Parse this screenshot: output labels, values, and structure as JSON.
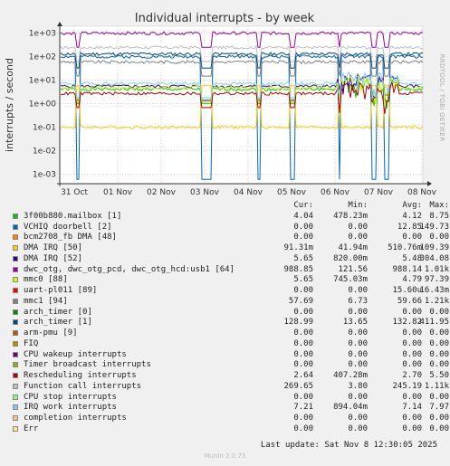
{
  "chart_data": {
    "type": "line",
    "title": "Individual interrupts - by week",
    "ylabel": "interrupts / second",
    "yscale": "log",
    "ylim": [
      0.0005,
      1000
    ],
    "y_ticks": [
      "1e+03",
      "1e+02",
      "1e+01",
      "1e+00",
      "1e-01",
      "1e-02",
      "1e-03"
    ],
    "x_ticks": [
      "31 Oct",
      "01 Nov",
      "02 Nov",
      "03 Nov",
      "04 Nov",
      "05 Nov",
      "06 Nov",
      "07 Nov",
      "08 Nov"
    ],
    "grid": true,
    "side_label": "RRDTOOL / TOBI OETIKER",
    "column_headers": [
      "Cur:",
      "Min:",
      "Avg:",
      "Max:"
    ],
    "series": [
      {
        "name": "3f00b880.mailbox [1]",
        "color": "#00cc00",
        "cur": "4.04",
        "min": "478.23m",
        "avg": "4.12",
        "max": "8.75",
        "level": 4.1
      },
      {
        "name": "VCHIQ doorbell [2]",
        "color": "#0066b3",
        "cur": "0.00",
        "min": "0.00",
        "avg": "12.85",
        "max": "149.73",
        "level": 100
      },
      {
        "name": "bcm2708_fb DMA [48]",
        "color": "#ff8000",
        "cur": "0.00",
        "min": "0.00",
        "avg": "0.00",
        "max": "0.00",
        "level": 0
      },
      {
        "name": "DMA IRQ [50]",
        "color": "#ffcc00",
        "cur": "91.31m",
        "min": "41.94m",
        "avg": "510.76m",
        "max": "109.39",
        "level": 0.1
      },
      {
        "name": "DMA IRQ [52]",
        "color": "#330099",
        "cur": "5.65",
        "min": "820.00m",
        "avg": "5.48",
        "max": "304.08",
        "level": 5.5
      },
      {
        "name": "dwc_otg, dwc_otg_pcd, dwc_otg_hcd:usb1 [64]",
        "color": "#990099",
        "cur": "988.85",
        "min": "121.56",
        "avg": "988.14",
        "max": "1.01k",
        "level": 988
      },
      {
        "name": "mmc0 [88]",
        "color": "#ccff00",
        "cur": "5.65",
        "min": "745.03m",
        "avg": "4.79",
        "max": "97.39",
        "level": 4.8
      },
      {
        "name": "uart-pl011 [89]",
        "color": "#ff0000",
        "cur": "0.00",
        "min": "0.00",
        "avg": "15.60u",
        "max": "16.43m",
        "level": 0
      },
      {
        "name": "mmc1 [94]",
        "color": "#808080",
        "cur": "57.69",
        "min": "6.73",
        "avg": "59.66",
        "max": "1.21k",
        "level": 59
      },
      {
        "name": "arch_timer [0]",
        "color": "#008f00",
        "cur": "0.00",
        "min": "0.00",
        "avg": "0.00",
        "max": "0.00",
        "level": 0
      },
      {
        "name": "arch_timer [1]",
        "color": "#00487d",
        "cur": "128.99",
        "min": "13.65",
        "avg": "132.82",
        "max": "411.95",
        "level": 130
      },
      {
        "name": "arm-pmu [9]",
        "color": "#b35a00",
        "cur": "0.00",
        "min": "0.00",
        "avg": "0.00",
        "max": "0.00",
        "level": 0
      },
      {
        "name": "FIQ",
        "color": "#b38f00",
        "cur": "0.00",
        "min": "0.00",
        "avg": "0.00",
        "max": "0.00",
        "level": 0
      },
      {
        "name": "CPU wakeup interrupts",
        "color": "#6b006b",
        "cur": "0.00",
        "min": "0.00",
        "avg": "0.00",
        "max": "0.00",
        "level": 0
      },
      {
        "name": "Timer broadcast interrupts",
        "color": "#8fb300",
        "cur": "0.00",
        "min": "0.00",
        "avg": "0.00",
        "max": "0.00",
        "level": 0
      },
      {
        "name": "Rescheduling interrupts",
        "color": "#b30000",
        "cur": "2.64",
        "min": "407.28m",
        "avg": "2.70",
        "max": "5.50",
        "level": 2.7
      },
      {
        "name": "Function call interrupts",
        "color": "#bebebe",
        "cur": "269.65",
        "min": "3.80",
        "avg": "245.19",
        "max": "1.11k",
        "level": 245
      },
      {
        "name": "CPU stop interrupts",
        "color": "#80ff80",
        "cur": "0.00",
        "min": "0.00",
        "avg": "0.00",
        "max": "0.00",
        "level": 0
      },
      {
        "name": "IRQ work interrupts",
        "color": "#80c9ff",
        "cur": "7.21",
        "min": "894.04m",
        "avg": "7.14",
        "max": "7.97",
        "level": 7.1
      },
      {
        "name": "completion interrupts",
        "color": "#ffc080",
        "cur": "0.00",
        "min": "0.00",
        "avg": "0.00",
        "max": "0.00",
        "level": 0
      },
      {
        "name": "Err",
        "color": "#ffe680",
        "cur": "0.00",
        "min": "0.00",
        "avg": "0.00",
        "max": "0.00",
        "level": 0
      }
    ]
  },
  "footer": {
    "last_update": "Last update: Sat Nov  8 12:30:05 2025",
    "version": "Munin 2.0.73"
  }
}
